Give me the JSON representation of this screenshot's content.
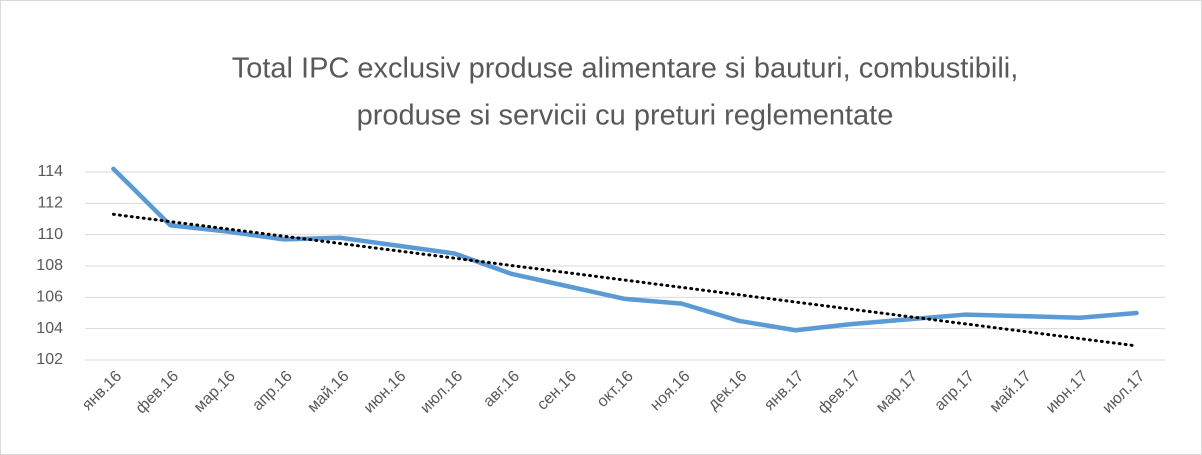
{
  "chart_data": {
    "type": "line",
    "title": [
      "Total IPC exclusiv produse alimentare si bauturi, combustibili,",
      "produse si servicii cu preturi reglementate"
    ],
    "categories": [
      "янв.16",
      "фев.16",
      "мар.16",
      "апр.16",
      "май.16",
      "июн.16",
      "июл.16",
      "авг.16",
      "сен.16",
      "окт.16",
      "ноя.16",
      "дек.16",
      "янв.17",
      "фев.17",
      "мар.17",
      "апр.17",
      "май.17",
      "июн.17",
      "июл.17"
    ],
    "series": [
      {
        "color": "#5b9bd5",
        "values": [
          114.2,
          110.6,
          110.2,
          109.7,
          109.8,
          109.3,
          108.8,
          107.5,
          106.7,
          105.9,
          105.6,
          104.5,
          103.9,
          104.3,
          104.6,
          104.9,
          104.8,
          104.7,
          105.0
        ]
      }
    ],
    "trendline": {
      "color": "#000000",
      "values": [
        111.3,
        102.9
      ]
    },
    "ylim": [
      102,
      114
    ],
    "yticks": [
      102,
      104,
      106,
      108,
      110,
      112,
      114
    ],
    "grid": true
  }
}
